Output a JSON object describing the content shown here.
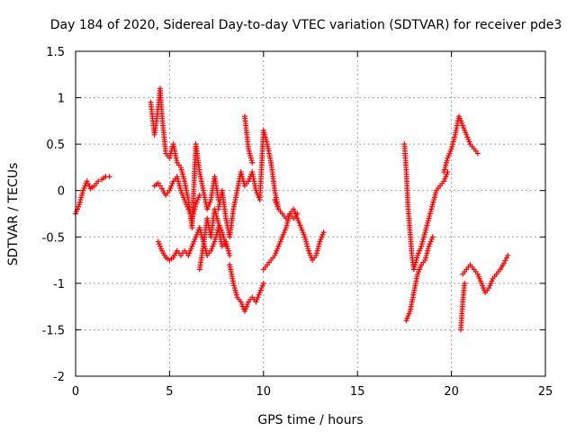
{
  "chart_data": {
    "type": "scatter",
    "title": "Day 184 of 2020, Sidereal Day-to-day VTEC variation (SDTVAR) for receiver pde3",
    "xlabel": "GPS time / hours",
    "ylabel": "SDTVAR / TECUs",
    "xlim": [
      0,
      25
    ],
    "ylim": [
      -2,
      1.5
    ],
    "xticks": [
      0,
      5,
      10,
      15,
      20,
      25
    ],
    "yticks": [
      -2,
      -1.5,
      -1,
      -0.5,
      0,
      0.5,
      1,
      1.5
    ],
    "xtick_labels": [
      "0",
      "5",
      "10",
      "15",
      "20",
      "25"
    ],
    "ytick_labels": [
      "-2",
      "-1.5",
      "-1",
      "-0.5",
      "0",
      "0.5",
      "1",
      "1.5"
    ],
    "grid": true,
    "marker": "+",
    "marker_color": "#ff0000",
    "series": [
      {
        "name": "SDTVAR",
        "segments": [
          {
            "x": [
              0.0,
              0.2,
              0.4,
              0.6,
              0.8,
              1.0,
              1.2,
              1.4,
              1.6,
              1.8
            ],
            "y": [
              -0.25,
              -0.15,
              0.0,
              0.1,
              0.02,
              0.05,
              0.1,
              0.12,
              0.15,
              0.15
            ]
          },
          {
            "x": [
              4.0,
              4.2,
              4.4,
              4.5,
              4.6,
              4.8,
              5.0,
              5.2,
              5.4,
              5.6,
              5.8,
              6.0,
              6.2,
              6.4,
              6.6,
              6.8,
              7.0,
              7.2,
              7.4,
              7.6
            ],
            "y": [
              0.95,
              0.6,
              0.9,
              1.1,
              0.8,
              0.4,
              0.35,
              0.5,
              0.3,
              0.25,
              0.1,
              -0.1,
              -0.4,
              0.5,
              0.2,
              0.0,
              -0.2,
              -0.1,
              0.15,
              -0.1
            ]
          },
          {
            "x": [
              4.2,
              4.4,
              4.6,
              4.8,
              5.0,
              5.2,
              5.4,
              5.6,
              5.8,
              6.0,
              6.2,
              6.4,
              6.6
            ],
            "y": [
              0.05,
              0.08,
              0.02,
              -0.05,
              0.0,
              0.1,
              0.15,
              0.0,
              -0.1,
              -0.2,
              -0.3,
              -0.15,
              -0.05
            ]
          },
          {
            "x": [
              4.4,
              4.6,
              4.8,
              5.0,
              5.2,
              5.4,
              5.6,
              5.8,
              6.0,
              6.2,
              6.4,
              6.6,
              6.8,
              7.0,
              7.2,
              7.4,
              7.6,
              7.8,
              8.0,
              8.2
            ],
            "y": [
              -0.55,
              -0.65,
              -0.72,
              -0.75,
              -0.72,
              -0.65,
              -0.7,
              -0.65,
              -0.7,
              -0.6,
              -0.5,
              -0.4,
              -0.55,
              -0.7,
              -0.65,
              -0.55,
              -0.4,
              -0.6,
              -0.55,
              -0.7
            ]
          },
          {
            "x": [
              6.6,
              6.8,
              7.0,
              7.2,
              7.4,
              7.6,
              7.8,
              8.0
            ],
            "y": [
              -0.85,
              -0.6,
              -0.3,
              -0.5,
              -0.2,
              -0.35,
              -0.45,
              -0.6
            ]
          },
          {
            "x": [
              7.6,
              7.8,
              8.0,
              8.2,
              8.4,
              8.6,
              8.8,
              9.0,
              9.2,
              9.4,
              9.6,
              9.8,
              10.0,
              10.2,
              10.4,
              10.6,
              10.8
            ],
            "y": [
              -0.2,
              0.0,
              -0.3,
              -0.5,
              -0.2,
              0.0,
              0.2,
              0.05,
              0.1,
              0.2,
              0.0,
              -0.1,
              0.65,
              0.5,
              0.3,
              0.0,
              -0.2
            ]
          },
          {
            "x": [
              8.2,
              8.4,
              8.6,
              8.8,
              9.0,
              9.2,
              9.4,
              9.6,
              9.8,
              10.0
            ],
            "y": [
              -0.8,
              -1.0,
              -1.15,
              -1.2,
              -1.3,
              -1.2,
              -1.15,
              -1.2,
              -1.1,
              -1.0
            ]
          },
          {
            "x": [
              9.0,
              9.2,
              9.4
            ],
            "y": [
              0.8,
              0.45,
              0.3
            ]
          },
          {
            "x": [
              10.0,
              10.2,
              10.4,
              10.6,
              10.8,
              11.0,
              11.2,
              11.4,
              11.6,
              11.8
            ],
            "y": [
              -0.85,
              -0.8,
              -0.75,
              -0.7,
              -0.6,
              -0.5,
              -0.4,
              -0.25,
              -0.3,
              -0.25
            ]
          },
          {
            "x": [
              10.6,
              10.8,
              11.0,
              11.2,
              11.4,
              11.6,
              11.8,
              12.0,
              12.2,
              12.4,
              12.6,
              12.8,
              13.0,
              13.2
            ],
            "y": [
              -0.1,
              -0.2,
              -0.25,
              -0.3,
              -0.25,
              -0.2,
              -0.3,
              -0.4,
              -0.5,
              -0.65,
              -0.75,
              -0.7,
              -0.55,
              -0.45
            ]
          },
          {
            "x": [
              17.5,
              17.6,
              17.7,
              17.8,
              17.9,
              18.0,
              18.2,
              18.4,
              18.6,
              18.8,
              19.0,
              19.2,
              19.4,
              19.6,
              19.8
            ],
            "y": [
              0.5,
              0.2,
              -0.2,
              -0.45,
              -0.7,
              -0.85,
              -0.7,
              -0.6,
              -0.45,
              -0.3,
              -0.15,
              0.0,
              0.05,
              0.1,
              0.2
            ]
          },
          {
            "x": [
              17.6,
              17.8,
              18.0,
              18.2,
              18.4,
              18.6,
              18.8,
              19.0
            ],
            "y": [
              -1.4,
              -1.3,
              -1.1,
              -0.9,
              -0.8,
              -0.75,
              -0.6,
              -0.5
            ]
          },
          {
            "x": [
              19.6,
              19.8,
              20.0,
              20.2,
              20.4,
              20.6,
              20.8,
              21.0,
              21.2,
              21.4
            ],
            "y": [
              0.2,
              0.35,
              0.45,
              0.6,
              0.8,
              0.7,
              0.6,
              0.5,
              0.45,
              0.4
            ]
          },
          {
            "x": [
              20.5,
              20.6,
              20.7
            ],
            "y": [
              -1.5,
              -1.2,
              -1.0
            ]
          },
          {
            "x": [
              20.6,
              20.8,
              21.0,
              21.2,
              21.4,
              21.6,
              21.8,
              22.0,
              22.2,
              22.4,
              22.6,
              22.8,
              23.0
            ],
            "y": [
              -0.9,
              -0.85,
              -0.8,
              -0.85,
              -0.9,
              -1.0,
              -1.1,
              -1.05,
              -0.95,
              -0.9,
              -0.85,
              -0.78,
              -0.7
            ]
          }
        ]
      }
    ]
  }
}
